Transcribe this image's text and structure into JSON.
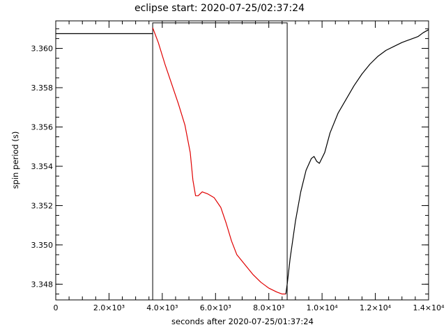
{
  "chart_data": {
    "type": "line",
    "title": "eclipse start: 2020-07-25/02:37:24",
    "xlabel": "seconds after 2020-07-25/01:37:24",
    "ylabel": "spin period (s)",
    "xlim": [
      0,
      14000
    ],
    "ylim": [
      3.3472,
      3.3614
    ],
    "grid": false,
    "x_ticks": [
      {
        "value": 0,
        "label": "0"
      },
      {
        "value": 2000,
        "label": "2.0×10³"
      },
      {
        "value": 4000,
        "label": "4.0×10³"
      },
      {
        "value": 6000,
        "label": "6.0×10³"
      },
      {
        "value": 8000,
        "label": "8.0×10³"
      },
      {
        "value": 10000,
        "label": "1.0×10⁴"
      },
      {
        "value": 12000,
        "label": "1.2×10⁴"
      },
      {
        "value": 14000,
        "label": "1.4×10⁴"
      }
    ],
    "y_ticks": [
      {
        "value": 3.348,
        "label": "3.348"
      },
      {
        "value": 3.35,
        "label": "3.350"
      },
      {
        "value": 3.352,
        "label": "3.352"
      },
      {
        "value": 3.354,
        "label": "3.354"
      },
      {
        "value": 3.356,
        "label": "3.356"
      },
      {
        "value": 3.358,
        "label": "3.358"
      },
      {
        "value": 3.36,
        "label": "3.360"
      }
    ],
    "eclipse_box": {
      "x_start": 3640,
      "x_end": 8690,
      "y_top": 3.3613,
      "color": "#000000"
    },
    "series": [
      {
        "color": "#000000",
        "x": [
          0,
          3600,
          3640
        ],
        "y": [
          3.36075,
          3.36075,
          3.36075
        ]
      },
      {
        "color": "#e00000",
        "x": [
          3640,
          3850,
          4100,
          4350,
          4600,
          4850,
          5050,
          5150,
          5250,
          5350,
          5500,
          5700,
          5950,
          6200,
          6400,
          6600,
          6800,
          7100,
          7400,
          7700,
          8000,
          8300,
          8500,
          8640
        ],
        "y": [
          3.36105,
          3.3603,
          3.3592,
          3.3582,
          3.3572,
          3.3561,
          3.3547,
          3.3533,
          3.3525,
          3.3525,
          3.3527,
          3.3526,
          3.3524,
          3.3519,
          3.3511,
          3.3502,
          3.3495,
          3.349,
          3.3485,
          3.3481,
          3.3478,
          3.3476,
          3.3475,
          3.3475
        ]
      },
      {
        "color": "#000000",
        "x": [
          8640,
          8700,
          8800,
          9000,
          9200,
          9400,
          9600,
          9700,
          9800,
          9900,
          10100,
          10300,
          10600,
          10900,
          11200,
          11500,
          11800,
          12100,
          12400,
          12700,
          13000,
          13200,
          13400,
          13600,
          13800,
          14000
        ],
        "y": [
          3.3475,
          3.3481,
          3.3493,
          3.3512,
          3.3527,
          3.3538,
          3.3544,
          3.3545,
          3.35425,
          3.35415,
          3.3547,
          3.3557,
          3.3567,
          3.3574,
          3.3581,
          3.3587,
          3.3592,
          3.3596,
          3.3599,
          3.3601,
          3.3603,
          3.3604,
          3.3605,
          3.3606,
          3.3608,
          3.36095
        ]
      }
    ]
  }
}
